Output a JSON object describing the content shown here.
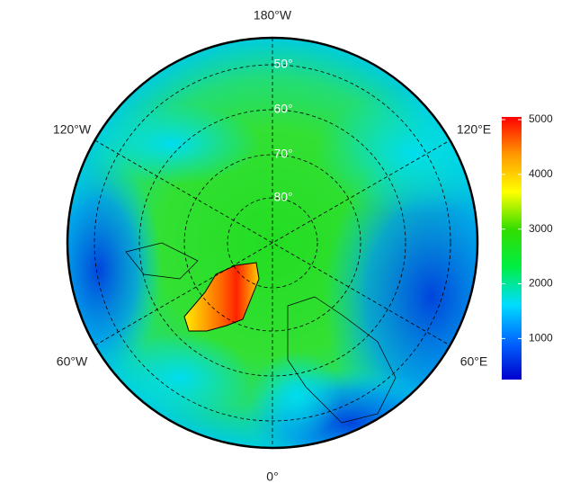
{
  "map": {
    "longitude_labels": [
      "180°W",
      "120°W",
      "120°E",
      "60°W",
      "60°E",
      "0°"
    ],
    "latitude_labels": [
      "50°",
      "60°",
      "70°",
      "80°"
    ],
    "colorbar": {
      "lim": [
        250,
        5050
      ],
      "ticks": [
        1000,
        2000,
        3000,
        4000,
        5000
      ],
      "colors": [
        "#0000cc",
        "#0066ff",
        "#00ddff",
        "#00ee44",
        "#33dd00",
        "#ffff00",
        "#ff9900",
        "#ff0000"
      ]
    }
  }
}
